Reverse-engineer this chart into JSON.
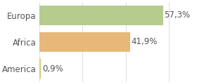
{
  "categories": [
    "America",
    "Africa",
    "Europa"
  ],
  "values": [
    0.9,
    41.9,
    57.3
  ],
  "labels": [
    "0,9%",
    "41,9%",
    "57,3%"
  ],
  "bar_colors": [
    "#d4c97a",
    "#e8b87a",
    "#b5cc8e"
  ],
  "background_color": "#ffffff",
  "xlim": [
    0,
    72
  ],
  "bar_height": 0.72,
  "label_fontsize": 8.5,
  "tick_fontsize": 8.5,
  "grid_color": "#e0e0e0",
  "text_color": "#555555"
}
